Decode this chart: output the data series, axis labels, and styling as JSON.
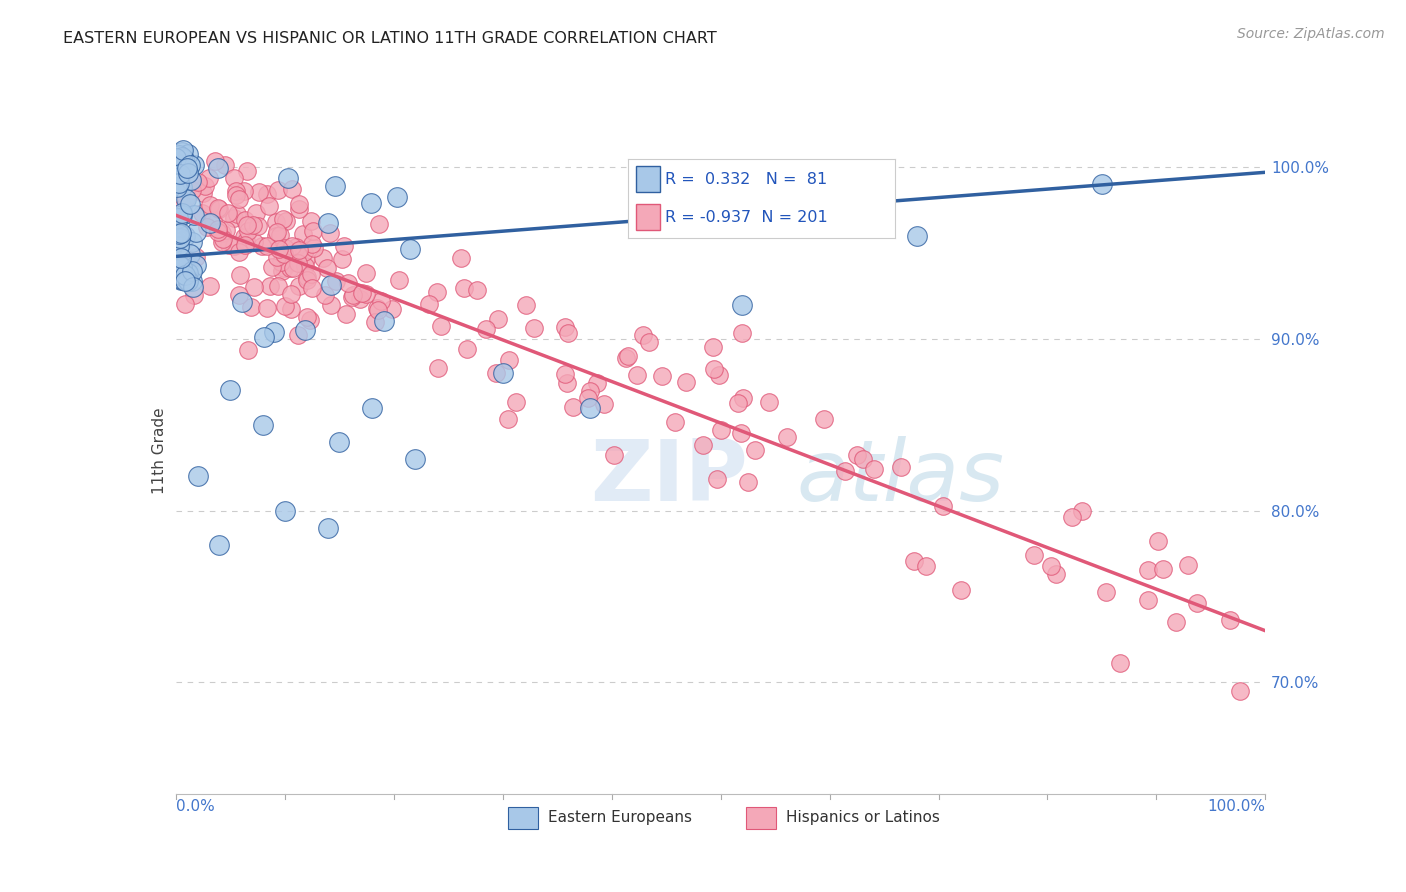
{
  "title": "EASTERN EUROPEAN VS HISPANIC OR LATINO 11TH GRADE CORRELATION CHART",
  "source_text": "Source: ZipAtlas.com",
  "ylabel": "11th Grade",
  "legend_labels": [
    "Eastern Europeans",
    "Hispanics or Latinos"
  ],
  "r_blue": 0.332,
  "n_blue": 81,
  "r_pink": -0.937,
  "n_pink": 201,
  "blue_color": "#A8C8E8",
  "pink_color": "#F4A8B8",
  "blue_line_color": "#3060A0",
  "pink_line_color": "#E05878",
  "right_yticks": [
    0.7,
    0.8,
    0.9,
    1.0
  ],
  "right_yticklabels": [
    "70.0%",
    "80.0%",
    "90.0%",
    "100.0%"
  ],
  "xlim": [
    0.0,
    1.0
  ],
  "ylim": [
    0.635,
    1.035
  ],
  "blue_trend_start": 0.948,
  "blue_trend_end": 0.997,
  "pink_trend_start": 0.972,
  "pink_trend_end": 0.73,
  "watermark_zip": "ZIP",
  "watermark_atlas": "atlas",
  "background_color": "#FFFFFF",
  "grid_color": "#CCCCCC"
}
